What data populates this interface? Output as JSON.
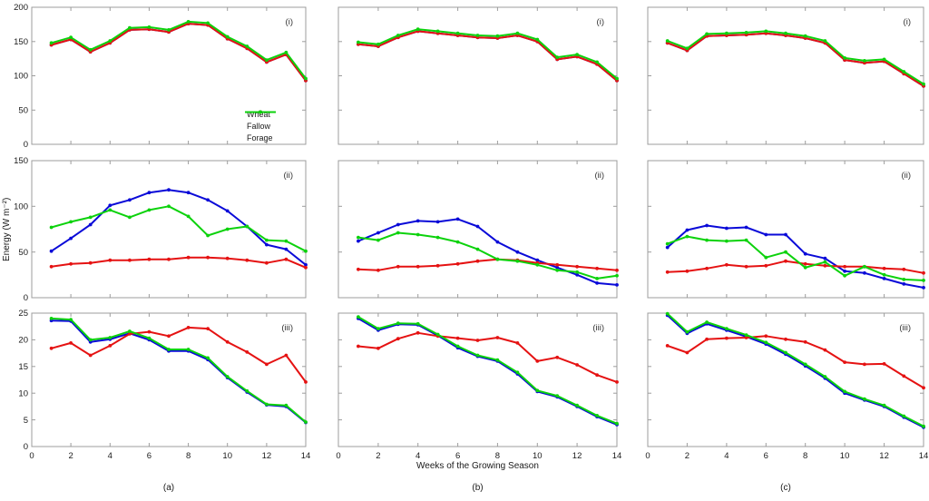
{
  "figure": {
    "ylabel": "Energy (W m⁻²)",
    "xlabel": "Weeks of the Growing Season",
    "column_labels": [
      "(a)",
      "(b)",
      "(c)"
    ],
    "panel_labels": [
      "(i)",
      "(ii)",
      "(iii)"
    ],
    "legend": [
      {
        "label": "Wheat",
        "color": "#0a0ad8"
      },
      {
        "label": "Fallow",
        "color": "#e51212"
      },
      {
        "label": "Forage",
        "color": "#0cd20c"
      }
    ],
    "axis_color": "#9c9c9c",
    "text_color": "#1a1a1a"
  },
  "chart_data": [
    {
      "type": "line",
      "column": "(a)",
      "panel": "(i)",
      "x": [
        1,
        2,
        3,
        4,
        5,
        6,
        7,
        8,
        9,
        10,
        11,
        12,
        13,
        14
      ],
      "xlim": [
        0,
        14
      ],
      "ylim": [
        0,
        200
      ],
      "xticks": [
        0,
        2,
        4,
        6,
        8,
        10,
        12,
        14
      ],
      "yticks": [
        0,
        50,
        100,
        150,
        200
      ],
      "xtick_labels_visible": false,
      "ytick_labels_visible": true,
      "legend_visible": true,
      "series": [
        {
          "name": "Wheat",
          "color": "#0a0ad8",
          "values": [
            145,
            153,
            135,
            148,
            167,
            168,
            164,
            176,
            174,
            154,
            140,
            120,
            131,
            93
          ]
        },
        {
          "name": "Fallow",
          "color": "#e51212",
          "values": [
            145,
            153,
            135,
            148,
            167,
            168,
            164,
            176,
            174,
            154,
            140,
            120,
            131,
            93
          ]
        },
        {
          "name": "Forage",
          "color": "#0cd20c",
          "values": [
            148,
            156,
            138,
            151,
            170,
            171,
            167,
            179,
            177,
            157,
            143,
            123,
            134,
            96
          ]
        }
      ]
    },
    {
      "type": "line",
      "column": "(b)",
      "panel": "(i)",
      "x": [
        1,
        2,
        3,
        4,
        5,
        6,
        7,
        8,
        9,
        10,
        11,
        12,
        13,
        14
      ],
      "xlim": [
        0,
        14
      ],
      "ylim": [
        0,
        200
      ],
      "xticks": [
        0,
        2,
        4,
        6,
        8,
        10,
        12,
        14
      ],
      "yticks": [
        0,
        50,
        100,
        150,
        200
      ],
      "xtick_labels_visible": false,
      "ytick_labels_visible": false,
      "legend_visible": false,
      "series": [
        {
          "name": "Wheat",
          "color": "#0a0ad8",
          "values": [
            146,
            143,
            156,
            165,
            162,
            159,
            156,
            155,
            159,
            150,
            124,
            128,
            117,
            93
          ]
        },
        {
          "name": "Fallow",
          "color": "#e51212",
          "values": [
            146,
            143,
            156,
            165,
            162,
            159,
            156,
            155,
            159,
            150,
            124,
            128,
            117,
            93
          ]
        },
        {
          "name": "Forage",
          "color": "#0cd20c",
          "values": [
            149,
            146,
            159,
            168,
            165,
            162,
            159,
            158,
            162,
            153,
            127,
            131,
            120,
            96
          ]
        }
      ]
    },
    {
      "type": "line",
      "column": "(c)",
      "panel": "(i)",
      "x": [
        1,
        2,
        3,
        4,
        5,
        6,
        7,
        8,
        9,
        10,
        11,
        12,
        13,
        14
      ],
      "xlim": [
        0,
        14
      ],
      "ylim": [
        0,
        200
      ],
      "xticks": [
        0,
        2,
        4,
        6,
        8,
        10,
        12,
        14
      ],
      "yticks": [
        0,
        50,
        100,
        150,
        200
      ],
      "xtick_labels_visible": false,
      "ytick_labels_visible": false,
      "legend_visible": false,
      "series": [
        {
          "name": "Wheat",
          "color": "#0a0ad8",
          "values": [
            148,
            137,
            158,
            159,
            160,
            162,
            159,
            155,
            148,
            123,
            119,
            121,
            103,
            85
          ]
        },
        {
          "name": "Fallow",
          "color": "#e51212",
          "values": [
            148,
            137,
            158,
            159,
            160,
            162,
            159,
            155,
            148,
            123,
            119,
            121,
            103,
            85
          ]
        },
        {
          "name": "Forage",
          "color": "#0cd20c",
          "values": [
            151,
            140,
            161,
            162,
            163,
            165,
            162,
            158,
            151,
            126,
            122,
            124,
            106,
            88
          ]
        }
      ]
    },
    {
      "type": "line",
      "column": "(a)",
      "panel": "(ii)",
      "x": [
        1,
        2,
        3,
        4,
        5,
        6,
        7,
        8,
        9,
        10,
        11,
        12,
        13,
        14
      ],
      "xlim": [
        0,
        14
      ],
      "ylim": [
        0,
        150
      ],
      "xticks": [
        0,
        2,
        4,
        6,
        8,
        10,
        12,
        14
      ],
      "yticks": [
        0,
        50,
        100,
        150
      ],
      "xtick_labels_visible": false,
      "ytick_labels_visible": true,
      "legend_visible": false,
      "series": [
        {
          "name": "Wheat",
          "color": "#0a0ad8",
          "values": [
            51,
            65,
            80,
            101,
            107,
            115,
            118,
            115,
            107,
            95,
            78,
            58,
            53,
            36
          ]
        },
        {
          "name": "Fallow",
          "color": "#e51212",
          "values": [
            34,
            37,
            38,
            41,
            41,
            42,
            42,
            44,
            44,
            43,
            41,
            38,
            42,
            33
          ]
        },
        {
          "name": "Forage",
          "color": "#0cd20c",
          "values": [
            77,
            83,
            88,
            96,
            88,
            96,
            100,
            89,
            68,
            75,
            78,
            63,
            62,
            51
          ]
        }
      ]
    },
    {
      "type": "line",
      "column": "(b)",
      "panel": "(ii)",
      "x": [
        1,
        2,
        3,
        4,
        5,
        6,
        7,
        8,
        9,
        10,
        11,
        12,
        13,
        14
      ],
      "xlim": [
        0,
        14
      ],
      "ylim": [
        0,
        150
      ],
      "xticks": [
        0,
        2,
        4,
        6,
        8,
        10,
        12,
        14
      ],
      "yticks": [
        0,
        50,
        100,
        150
      ],
      "xtick_labels_visible": false,
      "ytick_labels_visible": false,
      "legend_visible": false,
      "series": [
        {
          "name": "Wheat",
          "color": "#0a0ad8",
          "values": [
            62,
            71,
            80,
            84,
            83,
            86,
            78,
            61,
            50,
            41,
            33,
            25,
            16,
            14
          ]
        },
        {
          "name": "Fallow",
          "color": "#e51212",
          "values": [
            31,
            30,
            34,
            34,
            35,
            37,
            40,
            42,
            41,
            38,
            36,
            34,
            32,
            30
          ]
        },
        {
          "name": "Forage",
          "color": "#0cd20c",
          "values": [
            66,
            63,
            71,
            69,
            66,
            61,
            53,
            42,
            40,
            36,
            30,
            28,
            21,
            24
          ]
        }
      ]
    },
    {
      "type": "line",
      "column": "(c)",
      "panel": "(ii)",
      "x": [
        1,
        2,
        3,
        4,
        5,
        6,
        7,
        8,
        9,
        10,
        11,
        12,
        13,
        14
      ],
      "xlim": [
        0,
        14
      ],
      "ylim": [
        0,
        150
      ],
      "xticks": [
        0,
        2,
        4,
        6,
        8,
        10,
        12,
        14
      ],
      "yticks": [
        0,
        50,
        100,
        150
      ],
      "xtick_labels_visible": false,
      "ytick_labels_visible": false,
      "legend_visible": false,
      "series": [
        {
          "name": "Wheat",
          "color": "#0a0ad8",
          "values": [
            55,
            74,
            79,
            76,
            77,
            69,
            69,
            48,
            43,
            29,
            27,
            21,
            15,
            11
          ]
        },
        {
          "name": "Fallow",
          "color": "#e51212",
          "values": [
            28,
            29,
            32,
            36,
            34,
            35,
            40,
            37,
            35,
            34,
            34,
            32,
            31,
            27
          ]
        },
        {
          "name": "Forage",
          "color": "#0cd20c",
          "values": [
            59,
            67,
            63,
            62,
            63,
            44,
            50,
            33,
            39,
            24,
            34,
            25,
            20,
            19
          ]
        }
      ]
    },
    {
      "type": "line",
      "column": "(a)",
      "panel": "(iii)",
      "x": [
        1,
        2,
        3,
        4,
        5,
        6,
        7,
        8,
        9,
        10,
        11,
        12,
        13,
        14
      ],
      "xlim": [
        0,
        14
      ],
      "ylim": [
        0,
        25
      ],
      "xticks": [
        0,
        2,
        4,
        6,
        8,
        10,
        12,
        14
      ],
      "yticks": [
        0,
        5,
        10,
        15,
        20,
        25
      ],
      "xtick_labels_visible": true,
      "ytick_labels_visible": true,
      "legend_visible": false,
      "series": [
        {
          "name": "Wheat",
          "color": "#0a0ad8",
          "values": [
            23.6,
            23.5,
            19.6,
            20.1,
            21.2,
            20.0,
            17.9,
            17.9,
            16.3,
            12.9,
            10.2,
            7.8,
            7.5,
            4.5
          ]
        },
        {
          "name": "Fallow",
          "color": "#e51212",
          "values": [
            18.4,
            19.4,
            17.1,
            18.9,
            21.1,
            21.5,
            20.7,
            22.3,
            22.1,
            19.6,
            17.7,
            15.4,
            17.1,
            12.1
          ]
        },
        {
          "name": "Forage",
          "color": "#0cd20c",
          "values": [
            24.0,
            23.8,
            20.0,
            20.4,
            21.6,
            20.3,
            18.2,
            18.2,
            16.6,
            13.1,
            10.4,
            7.9,
            7.7,
            4.6
          ]
        }
      ]
    },
    {
      "type": "line",
      "column": "(b)",
      "panel": "(iii)",
      "x": [
        1,
        2,
        3,
        4,
        5,
        6,
        7,
        8,
        9,
        10,
        11,
        12,
        13,
        14
      ],
      "xlim": [
        0,
        14
      ],
      "ylim": [
        0,
        25
      ],
      "xticks": [
        0,
        2,
        4,
        6,
        8,
        10,
        12,
        14
      ],
      "yticks": [
        0,
        5,
        10,
        15,
        20,
        25
      ],
      "xtick_labels_visible": true,
      "ytick_labels_visible": false,
      "legend_visible": false,
      "series": [
        {
          "name": "Wheat",
          "color": "#0a0ad8",
          "values": [
            24.0,
            21.8,
            22.9,
            22.8,
            20.8,
            18.5,
            16.9,
            16.0,
            13.6,
            10.3,
            9.3,
            7.5,
            5.6,
            4.1
          ]
        },
        {
          "name": "Fallow",
          "color": "#e51212",
          "values": [
            18.8,
            18.4,
            20.2,
            21.3,
            20.7,
            20.3,
            19.9,
            20.4,
            19.4,
            16.0,
            16.7,
            15.3,
            13.4,
            12.1
          ]
        },
        {
          "name": "Forage",
          "color": "#0cd20c",
          "values": [
            24.3,
            22.1,
            23.1,
            23.0,
            21.0,
            18.8,
            17.1,
            16.2,
            13.9,
            10.5,
            9.5,
            7.7,
            5.8,
            4.3
          ]
        }
      ]
    },
    {
      "type": "line",
      "column": "(c)",
      "panel": "(iii)",
      "x": [
        1,
        2,
        3,
        4,
        5,
        6,
        7,
        8,
        9,
        10,
        11,
        12,
        13,
        14
      ],
      "xlim": [
        0,
        14
      ],
      "ylim": [
        0,
        25
      ],
      "xticks": [
        0,
        2,
        4,
        6,
        8,
        10,
        12,
        14
      ],
      "yticks": [
        0,
        5,
        10,
        15,
        20,
        25
      ],
      "xtick_labels_visible": true,
      "ytick_labels_visible": false,
      "legend_visible": false,
      "series": [
        {
          "name": "Wheat",
          "color": "#0a0ad8",
          "values": [
            24.6,
            21.2,
            23.0,
            21.8,
            20.6,
            19.2,
            17.3,
            15.1,
            12.8,
            10.0,
            8.7,
            7.5,
            5.5,
            3.6
          ]
        },
        {
          "name": "Fallow",
          "color": "#e51212",
          "values": [
            18.9,
            17.6,
            20.1,
            20.3,
            20.4,
            20.7,
            20.1,
            19.6,
            18.1,
            15.8,
            15.4,
            15.5,
            13.2,
            11.0
          ]
        },
        {
          "name": "Forage",
          "color": "#0cd20c",
          "values": [
            24.9,
            21.5,
            23.3,
            22.1,
            20.9,
            19.5,
            17.6,
            15.4,
            13.1,
            10.3,
            8.9,
            7.7,
            5.7,
            3.8
          ]
        }
      ]
    }
  ]
}
